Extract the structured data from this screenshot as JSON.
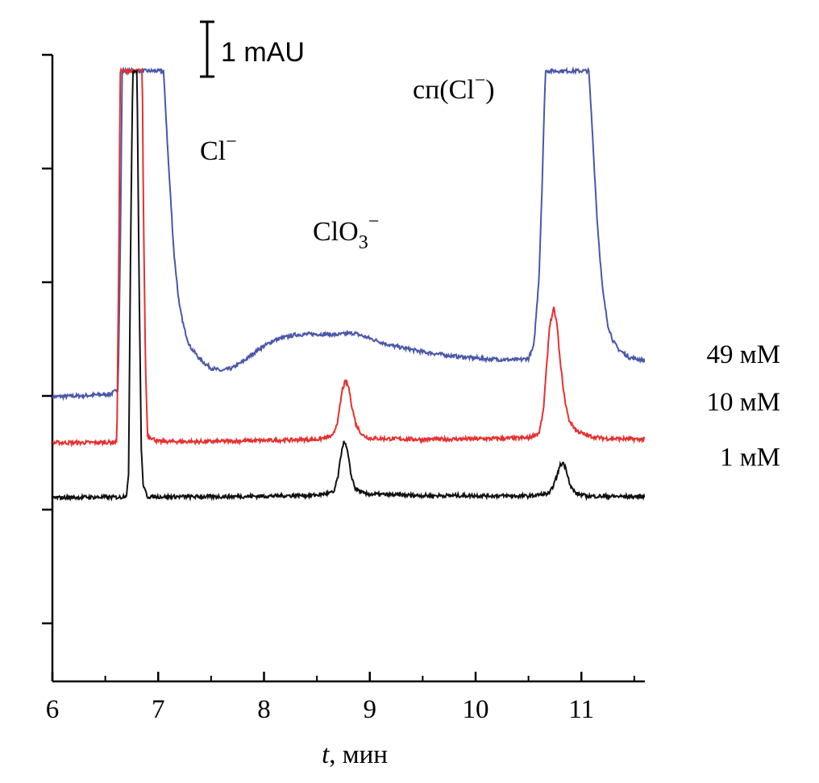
{
  "chart_data": {
    "type": "line",
    "title": "",
    "xlabel_italic": "t",
    "xlabel_rest": ", мин",
    "ylabel": "",
    "xlim": [
      6,
      11.6
    ],
    "x_ticks": [
      "6",
      "7",
      "8",
      "9",
      "10",
      "11"
    ],
    "y_tick_count": 6,
    "scale_bar": {
      "label": "1 mAU",
      "mAU": 1
    },
    "annotations": {
      "cl_base": "Cl",
      "clo3_base": "ClO",
      "clo3_sub": "3",
      "sp_prefix": "сп(Cl",
      "sp_suffix": ")",
      "minus": "−"
    },
    "series": [
      {
        "name": "49 мМ",
        "color": "#4a57a8",
        "baseline_mAU": 0,
        "points": [
          [
            6.0,
            -0.03
          ],
          [
            6.3,
            -0.01
          ],
          [
            6.55,
            0.02
          ],
          [
            6.62,
            0.1
          ],
          [
            6.64,
            2.5
          ],
          [
            6.66,
            6.0
          ],
          [
            7.05,
            6.0
          ],
          [
            7.1,
            4.2
          ],
          [
            7.15,
            2.6
          ],
          [
            7.2,
            1.65
          ],
          [
            7.25,
            1.2
          ],
          [
            7.3,
            0.9
          ],
          [
            7.4,
            0.65
          ],
          [
            7.5,
            0.5
          ],
          [
            7.6,
            0.45
          ],
          [
            7.7,
            0.5
          ],
          [
            7.8,
            0.62
          ],
          [
            7.95,
            0.85
          ],
          [
            8.1,
            1.02
          ],
          [
            8.3,
            1.12
          ],
          [
            8.5,
            1.13
          ],
          [
            8.7,
            1.12
          ],
          [
            8.85,
            1.15
          ],
          [
            9.0,
            1.05
          ],
          [
            9.2,
            0.92
          ],
          [
            9.5,
            0.8
          ],
          [
            9.8,
            0.72
          ],
          [
            10.1,
            0.67
          ],
          [
            10.4,
            0.65
          ],
          [
            10.5,
            0.68
          ],
          [
            10.55,
            0.9
          ],
          [
            10.6,
            2.2
          ],
          [
            10.63,
            4.0
          ],
          [
            10.66,
            6.0
          ],
          [
            11.07,
            6.0
          ],
          [
            11.1,
            5.0
          ],
          [
            11.15,
            3.2
          ],
          [
            11.2,
            1.95
          ],
          [
            11.25,
            1.3
          ],
          [
            11.3,
            1.0
          ],
          [
            11.35,
            0.85
          ],
          [
            11.45,
            0.7
          ],
          [
            11.6,
            0.64
          ]
        ]
      },
      {
        "name": "10 мМ",
        "color": "#e63030",
        "baseline_mAU": -0.88,
        "points": [
          [
            6.0,
            -0.88
          ],
          [
            6.3,
            -0.88
          ],
          [
            6.6,
            -0.87
          ],
          [
            6.61,
            -0.8
          ],
          [
            6.63,
            3.0
          ],
          [
            6.64,
            6.0
          ],
          [
            6.85,
            6.0
          ],
          [
            6.86,
            3.5
          ],
          [
            6.88,
            0.5
          ],
          [
            6.9,
            -0.75
          ],
          [
            7.0,
            -0.86
          ],
          [
            7.5,
            -0.86
          ],
          [
            8.0,
            -0.84
          ],
          [
            8.5,
            -0.82
          ],
          [
            8.65,
            -0.76
          ],
          [
            8.7,
            -0.45
          ],
          [
            8.74,
            0.1
          ],
          [
            8.77,
            0.26
          ],
          [
            8.8,
            0.15
          ],
          [
            8.83,
            -0.2
          ],
          [
            8.87,
            -0.55
          ],
          [
            8.93,
            -0.74
          ],
          [
            9.0,
            -0.8
          ],
          [
            9.5,
            -0.82
          ],
          [
            10.0,
            -0.81
          ],
          [
            10.3,
            -0.8
          ],
          [
            10.5,
            -0.79
          ],
          [
            10.6,
            -0.7
          ],
          [
            10.64,
            -0.3
          ],
          [
            10.67,
            0.5
          ],
          [
            10.7,
            1.3
          ],
          [
            10.74,
            1.6
          ],
          [
            10.77,
            1.3
          ],
          [
            10.8,
            0.6
          ],
          [
            10.84,
            -0.05
          ],
          [
            10.88,
            -0.45
          ],
          [
            10.95,
            -0.65
          ],
          [
            11.05,
            -0.75
          ],
          [
            11.2,
            -0.8
          ],
          [
            11.6,
            -0.82
          ]
        ]
      },
      {
        "name": "1 мМ",
        "color": "#111111",
        "baseline_mAU": -1.9,
        "points": [
          [
            6.0,
            -1.9
          ],
          [
            6.3,
            -1.89
          ],
          [
            6.65,
            -1.89
          ],
          [
            6.7,
            -1.85
          ],
          [
            6.72,
            -1.5
          ],
          [
            6.74,
            3.0
          ],
          [
            6.76,
            6.0
          ],
          [
            6.8,
            6.0
          ],
          [
            6.82,
            2.0
          ],
          [
            6.84,
            -1.0
          ],
          [
            6.86,
            -1.7
          ],
          [
            6.9,
            -1.88
          ],
          [
            7.5,
            -1.88
          ],
          [
            8.0,
            -1.87
          ],
          [
            8.5,
            -1.85
          ],
          [
            8.66,
            -1.8
          ],
          [
            8.7,
            -1.5
          ],
          [
            8.74,
            -0.95
          ],
          [
            8.76,
            -0.85
          ],
          [
            8.79,
            -1.05
          ],
          [
            8.82,
            -1.45
          ],
          [
            8.86,
            -1.72
          ],
          [
            8.95,
            -1.83
          ],
          [
            9.5,
            -1.86
          ],
          [
            10.0,
            -1.86
          ],
          [
            10.5,
            -1.87
          ],
          [
            10.7,
            -1.82
          ],
          [
            10.75,
            -1.6
          ],
          [
            10.8,
            -1.3
          ],
          [
            10.83,
            -1.25
          ],
          [
            10.86,
            -1.4
          ],
          [
            10.9,
            -1.7
          ],
          [
            10.95,
            -1.82
          ],
          [
            11.05,
            -1.87
          ],
          [
            11.6,
            -1.88
          ]
        ]
      }
    ]
  }
}
